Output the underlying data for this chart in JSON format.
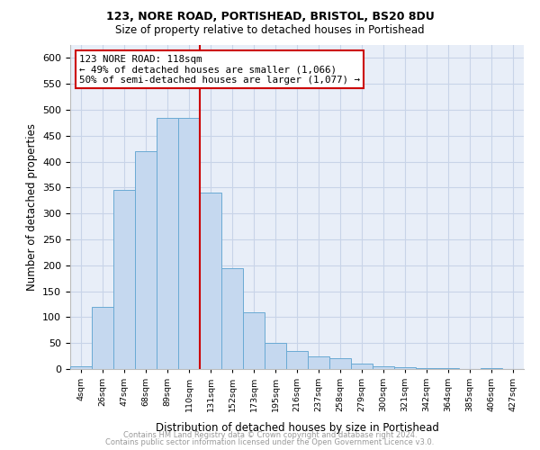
{
  "title1": "123, NORE ROAD, PORTISHEAD, BRISTOL, BS20 8DU",
  "title2": "Size of property relative to detached houses in Portishead",
  "xlabel": "Distribution of detached houses by size in Portishead",
  "ylabel": "Number of detached properties",
  "footer1": "Contains HM Land Registry data © Crown copyright and database right 2024.",
  "footer2": "Contains public sector information licensed under the Open Government Licence v3.0.",
  "bin_labels": [
    "4sqm",
    "26sqm",
    "47sqm",
    "68sqm",
    "89sqm",
    "110sqm",
    "131sqm",
    "152sqm",
    "173sqm",
    "195sqm",
    "216sqm",
    "237sqm",
    "258sqm",
    "279sqm",
    "300sqm",
    "321sqm",
    "342sqm",
    "364sqm",
    "385sqm",
    "406sqm",
    "427sqm"
  ],
  "bar_values": [
    5,
    120,
    345,
    420,
    485,
    485,
    340,
    195,
    110,
    50,
    35,
    25,
    20,
    10,
    5,
    3,
    2,
    2,
    0,
    2,
    0
  ],
  "bar_color": "#c5d8ef",
  "bar_edge_color": "#6aaad4",
  "annotation_text": "123 NORE ROAD: 118sqm\n← 49% of detached houses are smaller (1,066)\n50% of semi-detached houses are larger (1,077) →",
  "annotation_box_color": "#ffffff",
  "annotation_border_color": "#cc0000",
  "red_line_color": "#cc0000",
  "ylim": [
    0,
    625
  ],
  "yticks": [
    0,
    50,
    100,
    150,
    200,
    250,
    300,
    350,
    400,
    450,
    500,
    550,
    600
  ],
  "grid_color": "#c8d4e8",
  "background_color": "#e8eef8"
}
